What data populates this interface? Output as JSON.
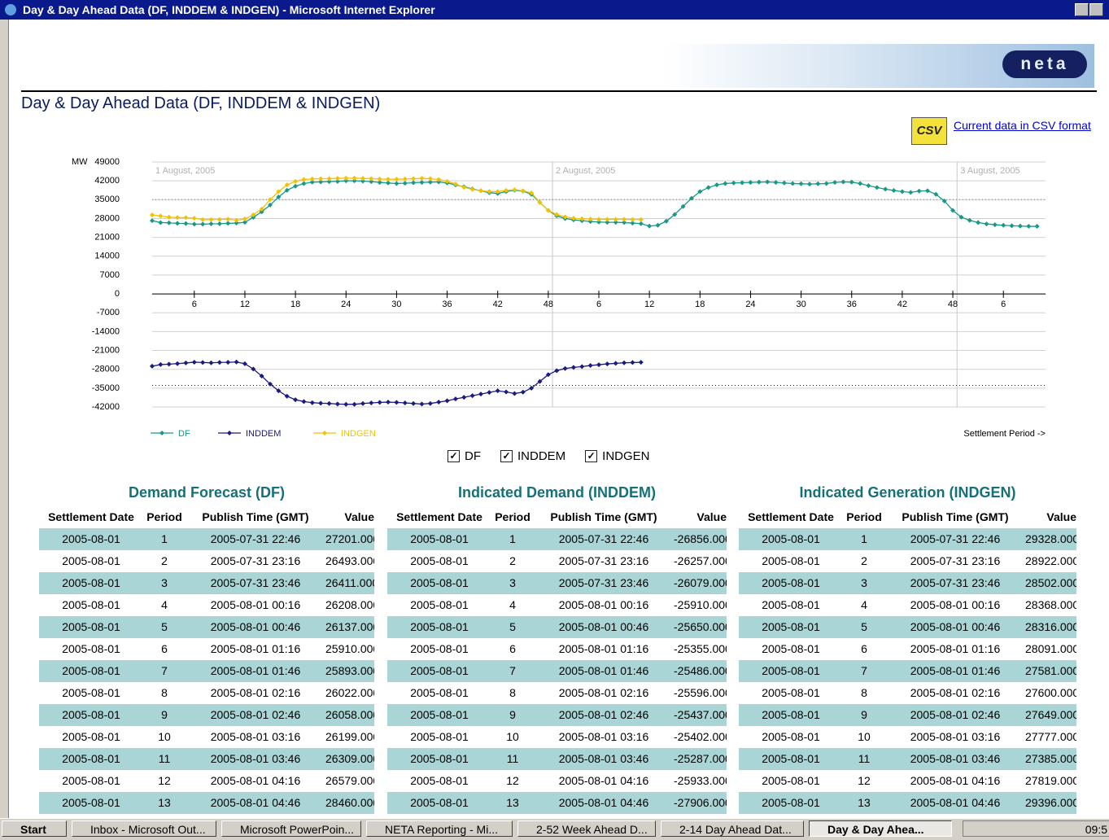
{
  "window": {
    "title": "Day & Day Ahead Data (DF, INDDEM & INDGEN) - Microsoft Internet Explorer"
  },
  "header": {
    "logo": "neta",
    "title": "Day & Day Ahead Data (DF, INDDEM & INDGEN)",
    "csv_icon": "CSV",
    "csv_link": "Current data in CSV format"
  },
  "chart_data": {
    "type": "line",
    "y_label": "MW",
    "x_label": "Settlement Period ->",
    "xlim": [
      1,
      107
    ],
    "ylim": [
      -42000,
      49000
    ],
    "yticks": [
      49000,
      42000,
      35000,
      28000,
      21000,
      14000,
      7000,
      0,
      -7000,
      -14000,
      -21000,
      -28000,
      -35000,
      -42000
    ],
    "xticks": [
      6,
      12,
      18,
      24,
      30,
      36,
      42,
      48,
      {
        "value": 54,
        "label": "6"
      },
      {
        "value": 60,
        "label": "12"
      },
      {
        "value": 66,
        "label": "18"
      },
      {
        "value": 72,
        "label": "24"
      },
      {
        "value": 78,
        "label": "30"
      },
      {
        "value": 84,
        "label": "36"
      },
      {
        "value": 90,
        "label": "42"
      },
      {
        "value": 96,
        "label": "48"
      },
      {
        "value": 102,
        "label": "6"
      }
    ],
    "grid": true,
    "day_labels": [
      {
        "x": 1,
        "label": "1 August, 2005"
      },
      {
        "x": 48.5,
        "label": "2 August, 2005"
      },
      {
        "x": 96.5,
        "label": "3 August, 2005"
      }
    ],
    "reference_lines": [
      {
        "value": 35000,
        "color": "#3aa040"
      },
      {
        "value": -34000,
        "color": "#1a1a80"
      }
    ],
    "x": [
      1,
      2,
      3,
      4,
      5,
      6,
      7,
      8,
      9,
      10,
      11,
      12,
      13,
      14,
      15,
      16,
      17,
      18,
      19,
      20,
      21,
      22,
      23,
      24,
      25,
      26,
      27,
      28,
      29,
      30,
      31,
      32,
      33,
      34,
      35,
      36,
      37,
      38,
      39,
      40,
      41,
      42,
      43,
      44,
      45,
      46,
      47,
      48,
      49,
      50,
      51,
      52,
      53,
      54,
      55,
      56,
      57,
      58,
      59,
      60,
      61,
      62,
      63,
      64,
      65,
      66,
      67,
      68,
      69,
      70,
      71,
      72,
      73,
      74,
      75,
      76,
      77,
      78,
      79,
      80,
      81,
      82,
      83,
      84,
      85,
      86,
      87,
      88,
      89,
      90,
      91,
      92,
      93,
      94,
      95,
      96,
      97,
      98,
      99,
      100,
      101,
      102,
      103,
      104,
      105,
      106
    ],
    "series": [
      {
        "name": "DF",
        "color": "#17998a",
        "values": [
          27201,
          26493,
          26411,
          26208,
          26137,
          25910,
          25893,
          26022,
          26058,
          26199,
          26309,
          26579,
          28460,
          30500,
          33000,
          36000,
          38500,
          40000,
          41000,
          41500,
          41600,
          41700,
          41800,
          42000,
          42000,
          41900,
          41700,
          41400,
          41200,
          41000,
          41100,
          41300,
          41400,
          41500,
          41600,
          41200,
          40500,
          39800,
          39000,
          38300,
          37600,
          37300,
          38000,
          38500,
          38200,
          37000,
          34000,
          31000,
          29000,
          28000,
          27500,
          27200,
          26900,
          26700,
          26600,
          26600,
          26500,
          26300,
          26100,
          25200,
          25500,
          27000,
          29500,
          32500,
          35500,
          38000,
          39500,
          40500,
          41000,
          41200,
          41300,
          41400,
          41500,
          41600,
          41400,
          41200,
          41000,
          40900,
          40800,
          40900,
          41000,
          41400,
          41600,
          41500,
          41000,
          40200,
          39500,
          38900,
          38400,
          38000,
          37700,
          38200,
          38300,
          37000,
          34500,
          31000,
          28500,
          27300,
          26500,
          26000,
          25700,
          25500,
          25300,
          25200,
          25100,
          25100
        ]
      },
      {
        "name": "INDDEM",
        "color": "#1a1a80",
        "values": [
          -26856,
          -26257,
          -26079,
          -25910,
          -25650,
          -25355,
          -25486,
          -25596,
          -25437,
          -25402,
          -25287,
          -25933,
          -27906,
          -30500,
          -33500,
          -36000,
          -38000,
          -39300,
          -40000,
          -40400,
          -40600,
          -40700,
          -40900,
          -41000,
          -41000,
          -40700,
          -40500,
          -40300,
          -40200,
          -40300,
          -40500,
          -40700,
          -40900,
          -40700,
          -40200,
          -39700,
          -39000,
          -38400,
          -37800,
          -37200,
          -36600,
          -36000,
          -36400,
          -37000,
          -36500,
          -35000,
          -32500,
          -30000,
          -28500,
          -27700,
          -27300,
          -27000,
          -26600,
          -26300,
          -26000,
          -25800,
          -25600,
          -25500,
          -25400,
          null,
          null,
          null,
          null,
          null,
          null,
          null,
          null,
          null,
          null,
          null,
          null,
          null,
          null,
          null,
          null,
          null,
          null,
          null,
          null,
          null,
          null,
          null,
          null,
          null,
          null,
          null,
          null,
          null,
          null,
          null,
          null,
          null,
          null,
          null,
          null,
          null,
          null,
          null,
          null,
          null,
          null,
          null,
          null,
          null,
          null,
          null
        ]
      },
      {
        "name": "INDGEN",
        "color": "#f2c200",
        "values": [
          29328,
          28922,
          28502,
          28368,
          28316,
          28091,
          27581,
          27600,
          27649,
          27777,
          27385,
          27819,
          29396,
          31500,
          35000,
          38000,
          40500,
          41800,
          42500,
          42700,
          42800,
          42800,
          42900,
          43000,
          43000,
          42900,
          42800,
          42700,
          42600,
          42600,
          42700,
          42800,
          42900,
          42800,
          42500,
          41800,
          40800,
          39600,
          38800,
          38300,
          38000,
          38000,
          38400,
          38700,
          38300,
          37500,
          34000,
          31000,
          29500,
          28600,
          28100,
          27900,
          27800,
          27700,
          27700,
          27700,
          27700,
          27600,
          27600,
          null,
          null,
          null,
          null,
          null,
          null,
          null,
          null,
          null,
          null,
          null,
          null,
          null,
          null,
          null,
          null,
          null,
          null,
          null,
          null,
          null,
          null,
          null,
          null,
          null,
          null,
          null,
          null,
          null,
          null,
          null,
          null,
          null,
          null,
          null,
          null,
          null,
          null,
          null,
          null,
          null,
          null,
          null,
          null,
          null,
          null,
          null
        ]
      }
    ]
  },
  "checkboxes": [
    {
      "label": "DF",
      "checked": true
    },
    {
      "label": "INDDEM",
      "checked": true
    },
    {
      "label": "INDGEN",
      "checked": true
    }
  ],
  "tables": [
    {
      "title": "Demand Forecast (DF)",
      "columns": [
        "Settlement Date",
        "Period",
        "Publish Time (GMT)",
        "Value"
      ],
      "rows": [
        [
          "2005-08-01",
          "1",
          "2005-07-31 22:46",
          "27201.000"
        ],
        [
          "2005-08-01",
          "2",
          "2005-07-31 23:16",
          "26493.000"
        ],
        [
          "2005-08-01",
          "3",
          "2005-07-31 23:46",
          "26411.000"
        ],
        [
          "2005-08-01",
          "4",
          "2005-08-01 00:16",
          "26208.000"
        ],
        [
          "2005-08-01",
          "5",
          "2005-08-01 00:46",
          "26137.000"
        ],
        [
          "2005-08-01",
          "6",
          "2005-08-01 01:16",
          "25910.000"
        ],
        [
          "2005-08-01",
          "7",
          "2005-08-01 01:46",
          "25893.000"
        ],
        [
          "2005-08-01",
          "8",
          "2005-08-01 02:16",
          "26022.000"
        ],
        [
          "2005-08-01",
          "9",
          "2005-08-01 02:46",
          "26058.000"
        ],
        [
          "2005-08-01",
          "10",
          "2005-08-01 03:16",
          "26199.000"
        ],
        [
          "2005-08-01",
          "11",
          "2005-08-01 03:46",
          "26309.000"
        ],
        [
          "2005-08-01",
          "12",
          "2005-08-01 04:16",
          "26579.000"
        ],
        [
          "2005-08-01",
          "13",
          "2005-08-01 04:46",
          "28460.000"
        ]
      ]
    },
    {
      "title": "Indicated Demand (INDDEM)",
      "columns": [
        "Settlement Date",
        "Period",
        "Publish Time (GMT)",
        "Value"
      ],
      "rows": [
        [
          "2005-08-01",
          "1",
          "2005-07-31 22:46",
          "-26856.000"
        ],
        [
          "2005-08-01",
          "2",
          "2005-07-31 23:16",
          "-26257.000"
        ],
        [
          "2005-08-01",
          "3",
          "2005-07-31 23:46",
          "-26079.000"
        ],
        [
          "2005-08-01",
          "4",
          "2005-08-01 00:16",
          "-25910.000"
        ],
        [
          "2005-08-01",
          "5",
          "2005-08-01 00:46",
          "-25650.000"
        ],
        [
          "2005-08-01",
          "6",
          "2005-08-01 01:16",
          "-25355.000"
        ],
        [
          "2005-08-01",
          "7",
          "2005-08-01 01:46",
          "-25486.000"
        ],
        [
          "2005-08-01",
          "8",
          "2005-08-01 02:16",
          "-25596.000"
        ],
        [
          "2005-08-01",
          "9",
          "2005-08-01 02:46",
          "-25437.000"
        ],
        [
          "2005-08-01",
          "10",
          "2005-08-01 03:16",
          "-25402.000"
        ],
        [
          "2005-08-01",
          "11",
          "2005-08-01 03:46",
          "-25287.000"
        ],
        [
          "2005-08-01",
          "12",
          "2005-08-01 04:16",
          "-25933.000"
        ],
        [
          "2005-08-01",
          "13",
          "2005-08-01 04:46",
          "-27906.000"
        ]
      ]
    },
    {
      "title": "Indicated Generation (INDGEN)",
      "columns": [
        "Settlement Date",
        "Period",
        "Publish Time (GMT)",
        "Value"
      ],
      "rows": [
        [
          "2005-08-01",
          "1",
          "2005-07-31 22:46",
          "29328.000"
        ],
        [
          "2005-08-01",
          "2",
          "2005-07-31 23:16",
          "28922.000"
        ],
        [
          "2005-08-01",
          "3",
          "2005-07-31 23:46",
          "28502.000"
        ],
        [
          "2005-08-01",
          "4",
          "2005-08-01 00:16",
          "28368.000"
        ],
        [
          "2005-08-01",
          "5",
          "2005-08-01 00:46",
          "28316.000"
        ],
        [
          "2005-08-01",
          "6",
          "2005-08-01 01:16",
          "28091.000"
        ],
        [
          "2005-08-01",
          "7",
          "2005-08-01 01:46",
          "27581.000"
        ],
        [
          "2005-08-01",
          "8",
          "2005-08-01 02:16",
          "27600.000"
        ],
        [
          "2005-08-01",
          "9",
          "2005-08-01 02:46",
          "27649.000"
        ],
        [
          "2005-08-01",
          "10",
          "2005-08-01 03:16",
          "27777.000"
        ],
        [
          "2005-08-01",
          "11",
          "2005-08-01 03:46",
          "27385.000"
        ],
        [
          "2005-08-01",
          "12",
          "2005-08-01 04:16",
          "27819.000"
        ],
        [
          "2005-08-01",
          "13",
          "2005-08-01 04:46",
          "29396.000"
        ]
      ]
    }
  ],
  "taskbar": {
    "start": "Start",
    "tasks": [
      "Inbox - Microsoft Out...",
      "Microsoft PowerPoin...",
      "NETA Reporting - Mi...",
      "2-52 Week Ahead D...",
      "2-14 Day Ahead Dat...",
      "Day & Day Ahea..."
    ],
    "clock": "09:5"
  }
}
